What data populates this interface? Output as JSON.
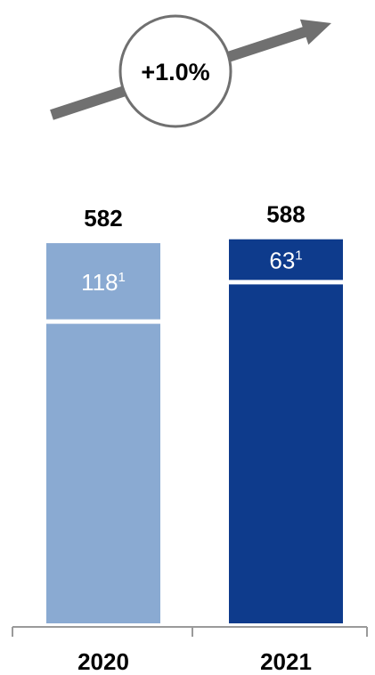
{
  "chart_data": {
    "type": "bar",
    "stacked": true,
    "categories": [
      "2020",
      "2021"
    ],
    "totals": [
      582,
      588
    ],
    "series": [
      {
        "values": [
          464,
          525
        ]
      },
      {
        "values": [
          118,
          63
        ]
      }
    ],
    "segment_labels": [
      "118",
      "63"
    ],
    "segment_label_footnote": "1",
    "growth_label": "+1.0%",
    "bar_colors": [
      "#8aaad2",
      "#0e3b8c"
    ],
    "arrow_color": "#707070",
    "ylim": [
      0,
      600
    ],
    "grid": false,
    "legend": "none"
  }
}
